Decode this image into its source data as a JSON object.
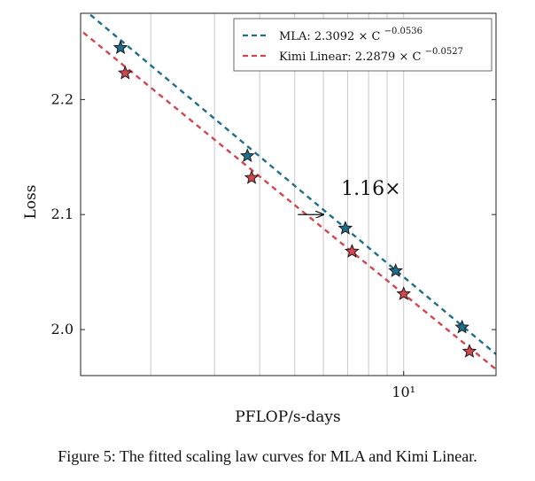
{
  "chart_data": {
    "type": "scatter",
    "xlabel": "PFLOP/s-days",
    "ylabel": "Loss",
    "xscale": "log",
    "xlim": [
      1.28,
      18.0
    ],
    "ylim": [
      1.96,
      2.275
    ],
    "x_ticks": [
      10
    ],
    "x_tick_labels": [
      "10¹"
    ],
    "y_ticks": [
      2.0,
      2.1,
      2.2
    ],
    "y_tick_labels": [
      "2.0",
      "2.1",
      "2.2"
    ],
    "grid": "vertical",
    "legend_position": "top-right",
    "series": [
      {
        "name": "MLA",
        "legend": "MLA: 2.3092 × C",
        "exponent_label": "−0.0536",
        "color": "#1f6e8c",
        "marker": "star",
        "fit": {
          "a": 2.3092,
          "b": -0.0536,
          "line": "dashed"
        },
        "x": [
          1.65,
          3.7,
          6.9,
          9.5,
          14.5
        ],
        "y": [
          2.245,
          2.151,
          2.088,
          2.051,
          2.002
        ]
      },
      {
        "name": "Kimi Linear",
        "legend": "Kimi Linear: 2.2879 × C",
        "exponent_label": "−0.0527",
        "color": "#d0474e",
        "marker": "star",
        "fit": {
          "a": 2.2879,
          "b": -0.0527,
          "line": "dashed"
        },
        "x": [
          1.7,
          3.8,
          7.2,
          10.0,
          15.2
        ],
        "y": [
          2.223,
          2.132,
          2.068,
          2.031,
          1.981
        ]
      }
    ],
    "annotations": [
      {
        "text": "1.16×",
        "arrow_from_x": 5.1,
        "arrow_to_x": 6.0,
        "arrow_y": 2.1
      }
    ]
  },
  "caption": "Figure 5: The fitted scaling law curves for MLA and Kimi Linear."
}
